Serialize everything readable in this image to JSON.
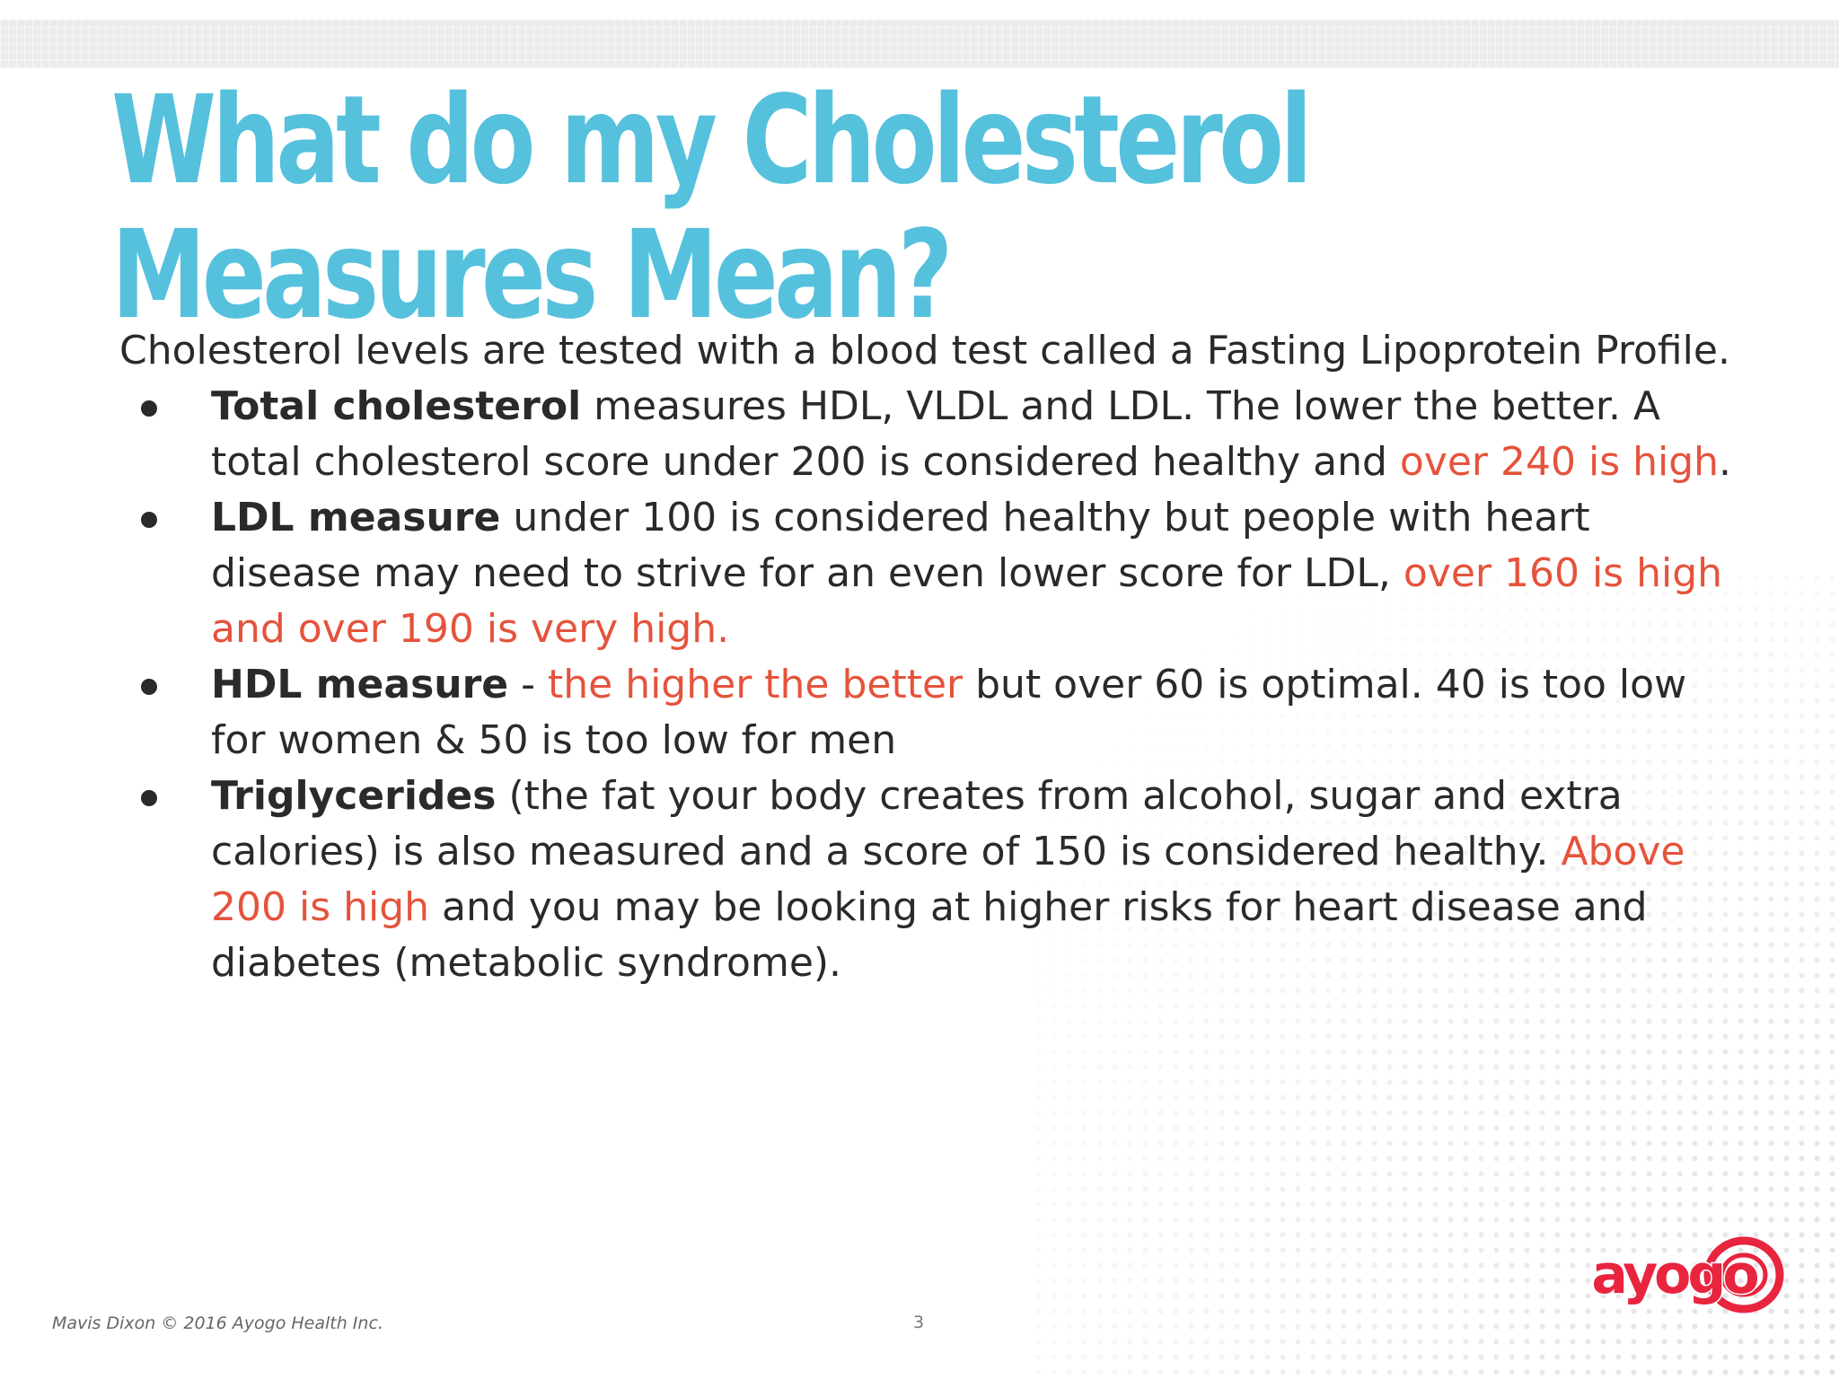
{
  "slide": {
    "title": "What do my Cholesterol Measures Mean?",
    "intro": "Cholesterol levels are tested with a blood test called a Fasting Lipoprotein Profile.",
    "items": [
      {
        "bold": "Total cholesterol",
        "t1": " measures HDL, VLDL and LDL. The lower the better. A total cholesterol score under 200 is considered healthy and ",
        "red": "over 240 is high",
        "t2": "."
      },
      {
        "bold": "LDL measure",
        "t1": " under 100 is considered healthy but people with heart disease may need to strive for an even lower score for LDL, ",
        "red": "over 160 is high and over 190 is very high.",
        "t2": ""
      },
      {
        "bold": "HDL measure",
        "t1": " - ",
        "red": "the higher the better",
        "t2": " but over 60 is optimal. 40 is too low for women & 50 is too low for men"
      },
      {
        "bold": "Triglycerides",
        "t1": " (the fat your body creates from alcohol, sugar and extra calories) is also measured and a score of 150 is considered healthy. ",
        "red": "Above 200 is high",
        "t2": " and you may be looking at higher risks for heart disease and diabetes (metabolic syndrome)."
      }
    ],
    "footer": "Mavis Dixon © 2016 Ayogo Health Inc.",
    "page_number": "3",
    "logo_text": "ayogo"
  },
  "colors": {
    "title": "#56c1dc",
    "body": "#2a2a2a",
    "highlight": "#e5533c",
    "logo": "#e8243f"
  }
}
